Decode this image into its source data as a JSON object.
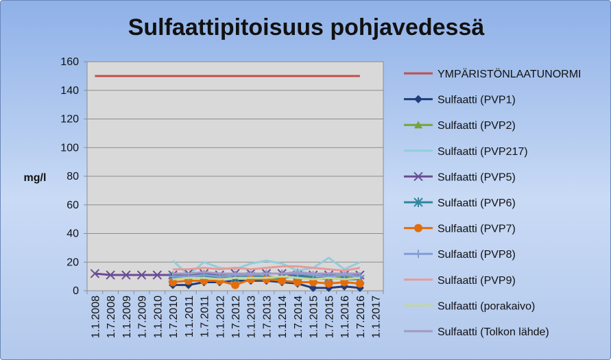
{
  "chart_data": {
    "type": "line",
    "title": "Sulfaattipitoisuus pohjavedessä",
    "ylabel": "mg/l",
    "xlabel": "",
    "ylim": [
      0,
      160
    ],
    "yticks": [
      0,
      20,
      40,
      60,
      80,
      100,
      120,
      140,
      160
    ],
    "grid": "horizontal",
    "legend": "right",
    "x": [
      "1.1.2008",
      "1.7.2008",
      "1.1.2009",
      "1.7.2009",
      "1.1.2010",
      "1.7.2010",
      "1.1.2011",
      "1.7.2011",
      "1.1.2012",
      "1.7.2012",
      "1.1.2013",
      "1.7.2013",
      "1.1.2014",
      "1.7.2014",
      "1.1.2015",
      "1.7.2015",
      "1.1.2016",
      "1.7.2016",
      "1.1.2017"
    ],
    "series": [
      {
        "name": "YMPÄRISTÖNLAATUNORMI",
        "color": "#c0504d",
        "marker": "none",
        "width": 3,
        "points": [
          [
            "1.1.2008",
            150
          ],
          [
            "1.7.2016",
            150
          ]
        ]
      },
      {
        "name": "Sulfaatti (PVP1)",
        "color": "#1f3d7a",
        "marker": "diamond",
        "width": 3,
        "points": [
          [
            "1.7.2010",
            4
          ],
          [
            "1.1.2011",
            4
          ],
          [
            "1.7.2011",
            6
          ],
          [
            "1.1.2012",
            6
          ],
          [
            "1.7.2012",
            7
          ],
          [
            "1.1.2013",
            7
          ],
          [
            "1.7.2013",
            7
          ],
          [
            "1.1.2014",
            6
          ],
          [
            "1.7.2014",
            5
          ],
          [
            "1.1.2015",
            2
          ],
          [
            "1.7.2015",
            2
          ],
          [
            "1.1.2016",
            3
          ],
          [
            "1.7.2016",
            2
          ]
        ]
      },
      {
        "name": "Sulfaatti (PVP2)",
        "color": "#77a33a",
        "marker": "triangle",
        "width": 3,
        "points": [
          [
            "1.7.2010",
            11
          ],
          [
            "1.1.2011",
            10
          ],
          [
            "1.7.2011",
            12
          ],
          [
            "1.1.2012",
            10
          ],
          [
            "1.7.2012",
            11
          ],
          [
            "1.1.2013",
            9
          ],
          [
            "1.7.2013",
            10
          ],
          [
            "1.1.2014",
            8
          ],
          [
            "1.7.2014",
            13
          ],
          [
            "1.1.2015",
            9
          ],
          [
            "1.7.2015",
            8
          ],
          [
            "1.1.2016",
            10
          ],
          [
            "1.7.2016",
            8
          ]
        ]
      },
      {
        "name": "Sulfaatti (PVP217)",
        "color": "#92cddc",
        "marker": "none",
        "width": 3,
        "points": [
          [
            "1.7.2010",
            21
          ],
          [
            "1.1.2011",
            11
          ],
          [
            "1.7.2011",
            20
          ],
          [
            "1.1.2012",
            16
          ],
          [
            "1.7.2012",
            15
          ],
          [
            "1.1.2013",
            19
          ],
          [
            "1.7.2013",
            21
          ],
          [
            "1.1.2014",
            19
          ],
          [
            "1.7.2014",
            14
          ],
          [
            "1.1.2015",
            16
          ],
          [
            "1.7.2015",
            23
          ],
          [
            "1.1.2016",
            15
          ],
          [
            "1.7.2016",
            20
          ]
        ]
      },
      {
        "name": "Sulfaatti (PVP5)",
        "color": "#6a4c93",
        "marker": "x",
        "width": 3,
        "points": [
          [
            "1.1.2008",
            12
          ],
          [
            "1.7.2008",
            11
          ],
          [
            "1.1.2009",
            11
          ],
          [
            "1.7.2009",
            11
          ],
          [
            "1.1.2010",
            11
          ],
          [
            "1.7.2010",
            11
          ],
          [
            "1.1.2011",
            12
          ],
          [
            "1.7.2011",
            12
          ],
          [
            "1.1.2012",
            11
          ],
          [
            "1.7.2012",
            12
          ],
          [
            "1.1.2013",
            12
          ],
          [
            "1.7.2013",
            12
          ],
          [
            "1.1.2014",
            12
          ],
          [
            "1.7.2014",
            11
          ],
          [
            "1.1.2015",
            11
          ],
          [
            "1.7.2015",
            11
          ],
          [
            "1.1.2016",
            11
          ],
          [
            "1.7.2016",
            11
          ]
        ]
      },
      {
        "name": "Sulfaatti (PVP6)",
        "color": "#31869b",
        "marker": "star",
        "width": 3,
        "points": [
          [
            "1.7.2010",
            9
          ],
          [
            "1.1.2011",
            9
          ],
          [
            "1.7.2011",
            10
          ],
          [
            "1.1.2012",
            9
          ],
          [
            "1.7.2012",
            9
          ],
          [
            "1.1.2013",
            10
          ],
          [
            "1.7.2013",
            10
          ],
          [
            "1.1.2014",
            9
          ],
          [
            "1.7.2014",
            10
          ],
          [
            "1.1.2015",
            9
          ],
          [
            "1.7.2015",
            9
          ],
          [
            "1.1.2016",
            8
          ],
          [
            "1.7.2016",
            8
          ]
        ]
      },
      {
        "name": "Sulfaatti (PVP7)",
        "color": "#e46c0a",
        "marker": "circle",
        "width": 3,
        "points": [
          [
            "1.7.2010",
            6
          ],
          [
            "1.1.2011",
            7
          ],
          [
            "1.7.2011",
            7
          ],
          [
            "1.1.2012",
            7
          ],
          [
            "1.7.2012",
            4
          ],
          [
            "1.1.2013",
            8
          ],
          [
            "1.7.2013",
            8
          ],
          [
            "1.1.2014",
            7
          ],
          [
            "1.7.2014",
            6
          ],
          [
            "1.1.2015",
            6
          ],
          [
            "1.7.2015",
            5
          ],
          [
            "1.1.2016",
            6
          ],
          [
            "1.7.2016",
            5
          ]
        ]
      },
      {
        "name": "Sulfaatti (PVP8)",
        "color": "#7f9ed4",
        "marker": "plus",
        "width": 3,
        "points": [
          [
            "1.7.2010",
            10
          ],
          [
            "1.1.2011",
            10
          ],
          [
            "1.7.2011",
            11
          ],
          [
            "1.1.2012",
            10
          ],
          [
            "1.7.2012",
            11
          ],
          [
            "1.1.2013",
            11
          ],
          [
            "1.7.2013",
            12
          ],
          [
            "1.1.2014",
            12
          ],
          [
            "1.7.2014",
            12
          ],
          [
            "1.1.2015",
            11
          ],
          [
            "1.7.2015",
            10
          ],
          [
            "1.1.2016",
            11
          ],
          [
            "1.7.2016",
            10
          ]
        ]
      },
      {
        "name": "Sulfaatti (PVP9)",
        "color": "#e59a9a",
        "marker": "none",
        "width": 3,
        "points": [
          [
            "1.7.2010",
            15
          ],
          [
            "1.1.2011",
            15
          ],
          [
            "1.7.2011",
            16
          ],
          [
            "1.1.2012",
            15
          ],
          [
            "1.7.2012",
            16
          ],
          [
            "1.1.2013",
            15
          ],
          [
            "1.7.2013",
            16
          ],
          [
            "1.1.2014",
            17
          ],
          [
            "1.7.2014",
            17
          ],
          [
            "1.1.2015",
            16
          ],
          [
            "1.7.2015",
            15
          ],
          [
            "1.1.2016",
            14
          ],
          [
            "1.7.2016",
            16
          ]
        ]
      },
      {
        "name": "Sulfaatti (porakaivo)",
        "color": "#c3d69b",
        "marker": "none",
        "width": 3,
        "points": [
          [
            "1.7.2010",
            8
          ],
          [
            "1.1.2011",
            9
          ],
          [
            "1.7.2011",
            9
          ],
          [
            "1.1.2012",
            8
          ],
          [
            "1.7.2012",
            9
          ],
          [
            "1.1.2013",
            9
          ],
          [
            "1.7.2013",
            9
          ],
          [
            "1.1.2014",
            10
          ],
          [
            "1.7.2014",
            9
          ],
          [
            "1.1.2015",
            8
          ],
          [
            "1.7.2015",
            9
          ],
          [
            "1.1.2016",
            8
          ],
          [
            "1.7.2016",
            9
          ]
        ]
      },
      {
        "name": "Sulfaatti (Tolkon lähde)",
        "color": "#a497c6",
        "marker": "none",
        "width": 3,
        "points": [
          [
            "1.7.2010",
            12
          ],
          [
            "1.1.2011",
            12
          ],
          [
            "1.7.2011",
            13
          ],
          [
            "1.1.2012",
            12
          ],
          [
            "1.7.2012",
            12
          ],
          [
            "1.1.2013",
            12
          ],
          [
            "1.7.2013",
            12
          ],
          [
            "1.1.2014",
            12
          ],
          [
            "1.7.2014",
            13
          ],
          [
            "1.1.2015",
            12
          ],
          [
            "1.7.2015",
            12
          ],
          [
            "1.1.2016",
            12
          ],
          [
            "1.7.2016",
            12
          ]
        ]
      }
    ]
  }
}
